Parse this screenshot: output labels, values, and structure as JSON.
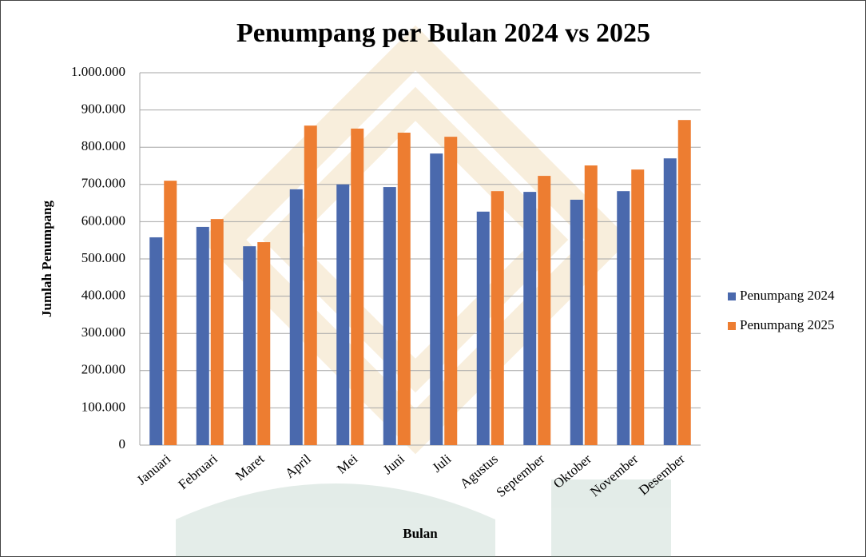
{
  "chart_data": {
    "type": "bar",
    "title": "Penumpang per Bulan 2024 vs 2025",
    "x_label": "Bulan",
    "y_label": "Jumlah Penumpang",
    "categories": [
      "Januari",
      "Februari",
      "Maret",
      "April",
      "Mei",
      "Juni",
      "Juli",
      "Agustus",
      "September",
      "Oktober",
      "November",
      "Desember"
    ],
    "series": [
      {
        "name": "Penumpang 2024",
        "color": "#4a69ad",
        "values": [
          558000,
          586000,
          534000,
          687000,
          700000,
          693000,
          783000,
          627000,
          680000,
          659000,
          682000,
          770000
        ]
      },
      {
        "name": "Penumpang 2025",
        "color": "#ed7d31",
        "values": [
          710000,
          607000,
          545000,
          858000,
          850000,
          839000,
          828000,
          682000,
          723000,
          751000,
          740000,
          873000
        ]
      }
    ],
    "ylim": [
      0,
      1000000
    ],
    "yticks": [
      0,
      {
        "value": 100000,
        "label": "100.000"
      },
      {
        "value": 200000,
        "label": "200.000"
      },
      {
        "value": 300000,
        "label": "300.000"
      },
      {
        "value": 400000,
        "label": "400.000"
      },
      {
        "value": 500000,
        "label": "500.000"
      },
      {
        "value": 600000,
        "label": "600.000"
      },
      {
        "value": 700000,
        "label": "700.000"
      },
      {
        "value": 800000,
        "label": "800.000"
      },
      {
        "value": 900000,
        "label": "900.000"
      },
      {
        "value": 1000000,
        "label": "1.000.000"
      }
    ],
    "grid": true,
    "legend": "right"
  }
}
